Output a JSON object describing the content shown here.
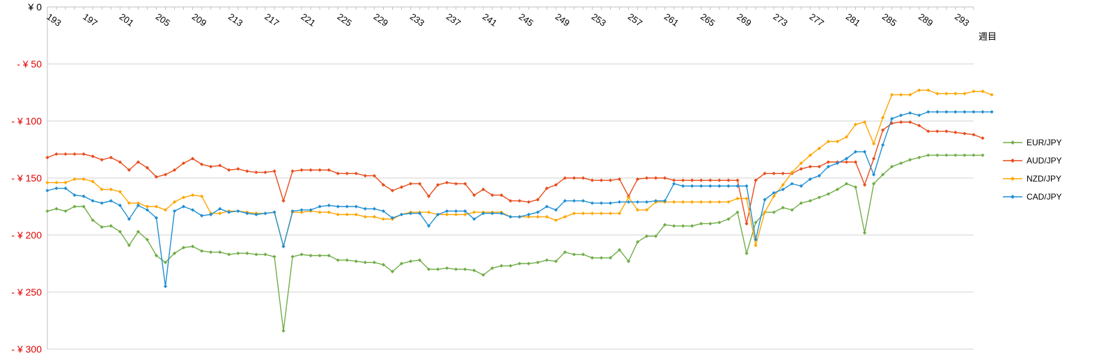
{
  "chart_data": {
    "type": "line",
    "x_start": 193,
    "x_end": 295,
    "x_tick_labels": [
      "193",
      "197",
      "201",
      "205",
      "209",
      "213",
      "217",
      "221",
      "225",
      "229",
      "233",
      "237",
      "241",
      "245",
      "249",
      "253",
      "257",
      "261",
      "265",
      "269",
      "273",
      "277",
      "281",
      "285",
      "289",
      "293"
    ],
    "x_unit_label": "週目",
    "ylim": [
      -300,
      0
    ],
    "y_ticks": [
      {
        "value": 0,
        "label": "¥ 0"
      },
      {
        "value": -50,
        "label": "- ¥ 50"
      },
      {
        "value": -100,
        "label": "- ¥ 100"
      },
      {
        "value": -150,
        "label": "- ¥ 150"
      },
      {
        "value": -200,
        "label": "- ¥ 200"
      },
      {
        "value": -250,
        "label": "- ¥ 250"
      },
      {
        "value": -300,
        "label": "- ¥ 300"
      }
    ],
    "grid": true,
    "legend_position": "right",
    "series": [
      {
        "name": "EUR/JPY",
        "color": "#70AD47",
        "values": [
          -179,
          -177,
          -179,
          -175,
          -175,
          -187,
          -193,
          -192,
          -197,
          -209,
          -197,
          -204,
          -218,
          -224,
          -216,
          -211,
          -210,
          -214,
          -215,
          -215,
          -217,
          -216,
          -216,
          -217,
          -217,
          -219,
          -284,
          -219,
          -217,
          -218,
          -218,
          -218,
          -222,
          -222,
          -223,
          -224,
          -224,
          -226,
          -232,
          -225,
          -223,
          -222,
          -230,
          -230,
          -229,
          -230,
          -230,
          -231,
          -235,
          -229,
          -227,
          -227,
          -225,
          -225,
          -224,
          -222,
          -223,
          -215,
          -217,
          -217,
          -220,
          -220,
          -220,
          -213,
          -223,
          -206,
          -201,
          -201,
          -191,
          -192,
          -192,
          -192,
          -190,
          -190,
          -189,
          -186,
          -180,
          -216,
          -189,
          -180,
          -180,
          -176,
          -178,
          -172,
          -170,
          -167,
          -164,
          -160,
          -155,
          -158,
          -198,
          -155,
          -147,
          -140,
          -137,
          -134,
          -132,
          -130,
          -130,
          -130,
          -130,
          -130,
          -130,
          -130
        ]
      },
      {
        "name": "AUD/JPY",
        "color": "#E84C1C",
        "values": [
          -132,
          -129,
          -129,
          -129,
          -129,
          -131,
          -134,
          -132,
          -136,
          -143,
          -136,
          -141,
          -149,
          -147,
          -143,
          -137,
          -133,
          -138,
          -140,
          -139,
          -143,
          -142,
          -144,
          -145,
          -145,
          -144,
          -170,
          -144,
          -143,
          -143,
          -143,
          -143,
          -146,
          -146,
          -146,
          -148,
          -148,
          -156,
          -161,
          -158,
          -155,
          -155,
          -166,
          -156,
          -154,
          -155,
          -155,
          -165,
          -160,
          -165,
          -165,
          -170,
          -170,
          -171,
          -169,
          -159,
          -156,
          -150,
          -150,
          -150,
          -152,
          -152,
          -152,
          -151,
          -166,
          -151,
          -150,
          -150,
          -150,
          -152,
          -152,
          -152,
          -152,
          -152,
          -152,
          -152,
          -152,
          -190,
          -152,
          -146,
          -146,
          -146,
          -146,
          -142,
          -140,
          -140,
          -136,
          -136,
          -136,
          -136,
          -156,
          -133,
          -108,
          -102,
          -101,
          -101,
          -104,
          -109,
          -109,
          -109,
          -110,
          -111,
          -112,
          -115
        ]
      },
      {
        "name": "NZD/JPY",
        "color": "#FFA500",
        "values": [
          -154,
          -154,
          -154,
          -151,
          -151,
          -153,
          -160,
          -160,
          -162,
          -172,
          -172,
          -175,
          -175,
          -178,
          -171,
          -167,
          -165,
          -166,
          -181,
          -181,
          -179,
          -179,
          -180,
          -181,
          -181,
          -180,
          -210,
          -180,
          -180,
          -179,
          -180,
          -180,
          -182,
          -182,
          -182,
          -184,
          -184,
          -186,
          -186,
          -182,
          -180,
          -180,
          -180,
          -182,
          -182,
          -182,
          -182,
          -180,
          -180,
          -180,
          -180,
          -184,
          -184,
          -184,
          -184,
          -184,
          -187,
          -184,
          -181,
          -181,
          -181,
          -181,
          -181,
          -181,
          -167,
          -178,
          -178,
          -171,
          -171,
          -171,
          -171,
          -171,
          -171,
          -171,
          -171,
          -171,
          -168,
          -168,
          -209,
          -180,
          -166,
          -156,
          -145,
          -137,
          -130,
          -124,
          -118,
          -118,
          -114,
          -103,
          -101,
          -120,
          -97,
          -77,
          -77,
          -77,
          -73,
          -73,
          -76,
          -76,
          -76,
          -76,
          -74,
          -74,
          -77
        ]
      },
      {
        "name": "CAD/JPY",
        "color": "#1F8FD3",
        "values": [
          -161,
          -159,
          -159,
          -165,
          -166,
          -170,
          -172,
          -170,
          -174,
          -186,
          -174,
          -178,
          -185,
          -245,
          -179,
          -175,
          -178,
          -183,
          -182,
          -177,
          -180,
          -179,
          -181,
          -182,
          -181,
          -180,
          -210,
          -179,
          -178,
          -178,
          -175,
          -174,
          -175,
          -175,
          -175,
          -177,
          -177,
          -179,
          -185,
          -182,
          -181,
          -181,
          -192,
          -182,
          -179,
          -179,
          -179,
          -186,
          -181,
          -181,
          -181,
          -184,
          -184,
          -182,
          -180,
          -175,
          -178,
          -170,
          -170,
          -170,
          -172,
          -172,
          -172,
          -171,
          -171,
          -171,
          -171,
          -170,
          -170,
          -155,
          -157,
          -157,
          -157,
          -157,
          -157,
          -157,
          -157,
          -157,
          -204,
          -169,
          -163,
          -160,
          -155,
          -157,
          -151,
          -148,
          -140,
          -137,
          -133,
          -127,
          -127,
          -147,
          -121,
          -98,
          -95,
          -93,
          -95,
          -92,
          -92,
          -92,
          -92,
          -92,
          -92,
          -92,
          -92
        ]
      }
    ]
  }
}
